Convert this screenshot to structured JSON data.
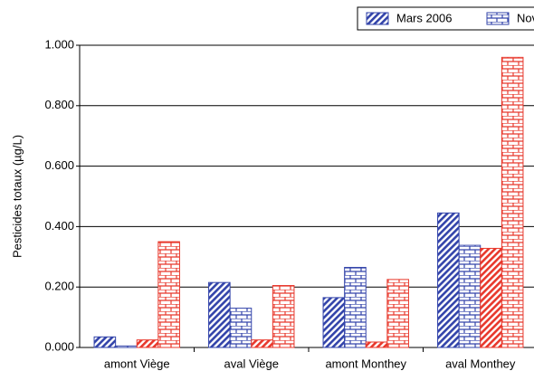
{
  "chart_data": {
    "type": "bar",
    "y_label": "Pesticides totaux  (µg/L)",
    "categories": [
      "amont Viège",
      "aval Viège",
      "amont Monthey",
      "aval Monthey"
    ],
    "series": [
      {
        "name": "Mars 2006",
        "color": "#3344aa",
        "pattern": "diagonal",
        "values": [
          0.035,
          0.215,
          0.165,
          0.445
        ]
      },
      {
        "name": "Nov",
        "color": "#3344aa",
        "pattern": "brick",
        "values": [
          0.005,
          0.13,
          0.265,
          0.338
        ]
      },
      {
        "color": "#e8382c",
        "pattern": "diagonal",
        "values": [
          0.025,
          0.025,
          0.018,
          0.328
        ]
      },
      {
        "color": "#e8382c",
        "pattern": "brick",
        "values": [
          0.35,
          0.205,
          0.225,
          0.96
        ]
      }
    ],
    "ylim": [
      0,
      1
    ],
    "yticks": [
      {
        "value": 0,
        "label": "0.000"
      },
      {
        "value": 0.2,
        "label": "0.200"
      },
      {
        "value": 0.4,
        "label": "0.400"
      },
      {
        "value": 0.6,
        "label": "0.600"
      },
      {
        "value": 0.8,
        "label": "0.800"
      },
      {
        "value": 1,
        "label": "1.000"
      }
    ],
    "grid": true
  }
}
